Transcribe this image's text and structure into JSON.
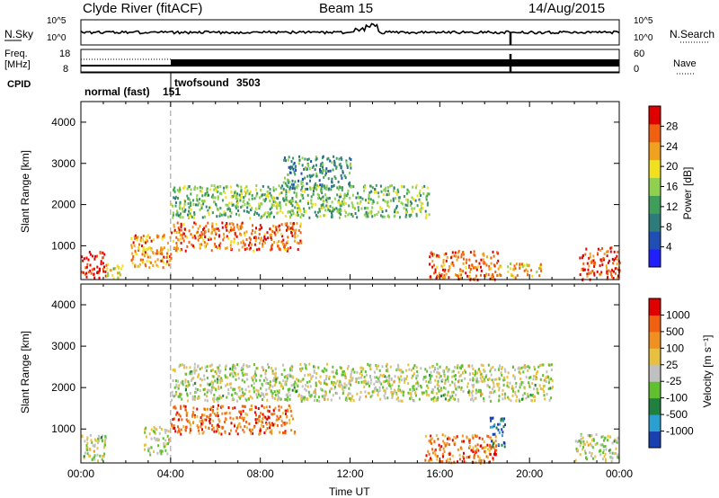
{
  "header": {
    "station": "Clyde River (fitACF)",
    "beam": "Beam 15",
    "date": "14/Aug/2015"
  },
  "top_panels": {
    "nsky_label": "N.Sky",
    "nsky_ticks": [
      "10^5",
      "10^0"
    ],
    "nsearch_label": "N.Search",
    "nsearch_ticks": [
      "10^5",
      "10^0"
    ],
    "freq_label": "Freq.",
    "freq_unit": "[MHz]",
    "freq_ticks": [
      "18",
      "8"
    ],
    "nave_label": "Nave",
    "nave_ticks": [
      "60",
      "0"
    ],
    "cpid_label": "CPID",
    "cpid_modes": [
      {
        "name": "normal (fast)",
        "id": "151"
      },
      {
        "name": "twofsound",
        "id": "3503"
      }
    ]
  },
  "chart_data": [
    {
      "type": "heatmap",
      "quantity": "power",
      "ylabel": "Slant Range [km]",
      "yticks": [
        "4000",
        "3000",
        "2000",
        "1000"
      ],
      "ylim": [
        180,
        4500
      ],
      "colorbar_label": "Power [dB]",
      "colorbar_ticks": [
        "28",
        "24",
        "20",
        "16",
        "12",
        "8",
        "4"
      ],
      "colorbar_colors": [
        "#2020ff",
        "#1f4fb4",
        "#2e7b7b",
        "#3f9f5a",
        "#8fd04f",
        "#f0e020",
        "#f2a020",
        "#f06010",
        "#e00000"
      ],
      "scatter_bands": [
        {
          "t0": 0.0,
          "t1": 1.1,
          "r0": 250,
          "r1": 900,
          "level": 0.95
        },
        {
          "t0": 1.1,
          "t1": 1.9,
          "r0": 200,
          "r1": 600,
          "level": 0.6
        },
        {
          "t0": 2.2,
          "t1": 4.0,
          "r0": 500,
          "r1": 1300,
          "level": 0.75
        },
        {
          "t0": 4.0,
          "t1": 9.8,
          "r0": 900,
          "r1": 1600,
          "level": 0.8
        },
        {
          "t0": 4.0,
          "t1": 15.5,
          "r0": 1700,
          "r1": 2500,
          "level": 0.45
        },
        {
          "t0": 9.0,
          "t1": 12.0,
          "r0": 2400,
          "r1": 3200,
          "level": 0.35
        },
        {
          "t0": 15.5,
          "t1": 18.7,
          "r0": 200,
          "r1": 900,
          "level": 0.8
        },
        {
          "t0": 19.0,
          "t1": 20.5,
          "r0": 250,
          "r1": 600,
          "level": 0.7
        },
        {
          "t0": 22.2,
          "t1": 24.0,
          "r0": 200,
          "r1": 1000,
          "level": 0.9
        }
      ]
    },
    {
      "type": "heatmap",
      "quantity": "velocity",
      "xlabel": "Time UT",
      "xticks": [
        "00:00",
        "04:00",
        "08:00",
        "12:00",
        "16:00",
        "20:00",
        "00:00"
      ],
      "xlim": [
        0,
        24
      ],
      "ylabel": "Slant Range [km]",
      "yticks": [
        "4000",
        "3000",
        "2000",
        "1000"
      ],
      "ylim": [
        180,
        4500
      ],
      "colorbar_label": "Velocity [m s⁻¹]",
      "colorbar_ticks": [
        "1000",
        "500",
        "100",
        "25",
        "-25",
        "-100",
        "-500",
        "-1000"
      ],
      "colorbar_colors": [
        "#1a3fb0",
        "#2aa0d0",
        "#208040",
        "#60c030",
        "#c0c0c0",
        "#e8c040",
        "#f09020",
        "#f06010",
        "#e00000"
      ],
      "scatter_bands": [
        {
          "t0": 0.0,
          "t1": 1.1,
          "r0": 250,
          "r1": 900,
          "level": 0.5
        },
        {
          "t0": 2.8,
          "t1": 3.9,
          "r0": 400,
          "r1": 1100,
          "level": 0.5
        },
        {
          "t0": 4.0,
          "t1": 9.5,
          "r0": 900,
          "r1": 1600,
          "level": 0.8
        },
        {
          "t0": 4.0,
          "t1": 21.0,
          "r0": 1700,
          "r1": 2600,
          "level": 0.5
        },
        {
          "t0": 15.3,
          "t1": 18.5,
          "r0": 200,
          "r1": 900,
          "level": 0.78
        },
        {
          "t0": 18.2,
          "t1": 18.9,
          "r0": 600,
          "r1": 1300,
          "level": 0.1
        },
        {
          "t0": 22.0,
          "t1": 24.0,
          "r0": 250,
          "r1": 900,
          "level": 0.5
        }
      ]
    }
  ]
}
